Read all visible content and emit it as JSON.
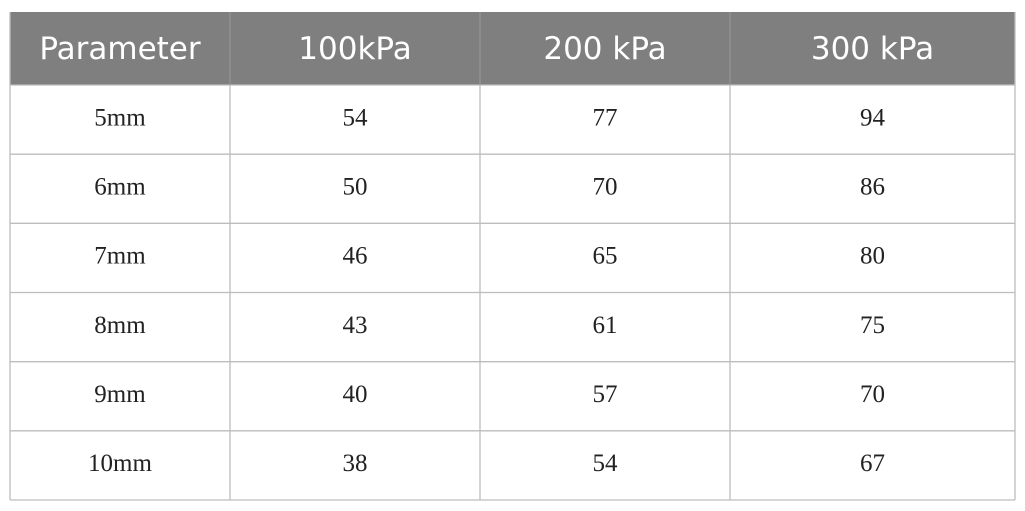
{
  "table": {
    "header": [
      "Parameter",
      "100kPa",
      "200 kPa",
      "300 kPa"
    ],
    "rows": [
      [
        "5mm",
        54,
        77,
        94
      ],
      [
        "6mm",
        50,
        70,
        86
      ],
      [
        "7mm",
        46,
        65,
        80
      ],
      [
        "8mm",
        43,
        61,
        75
      ],
      [
        "9mm",
        40,
        57,
        70
      ],
      [
        "10mm",
        38,
        54,
        67
      ]
    ]
  }
}
